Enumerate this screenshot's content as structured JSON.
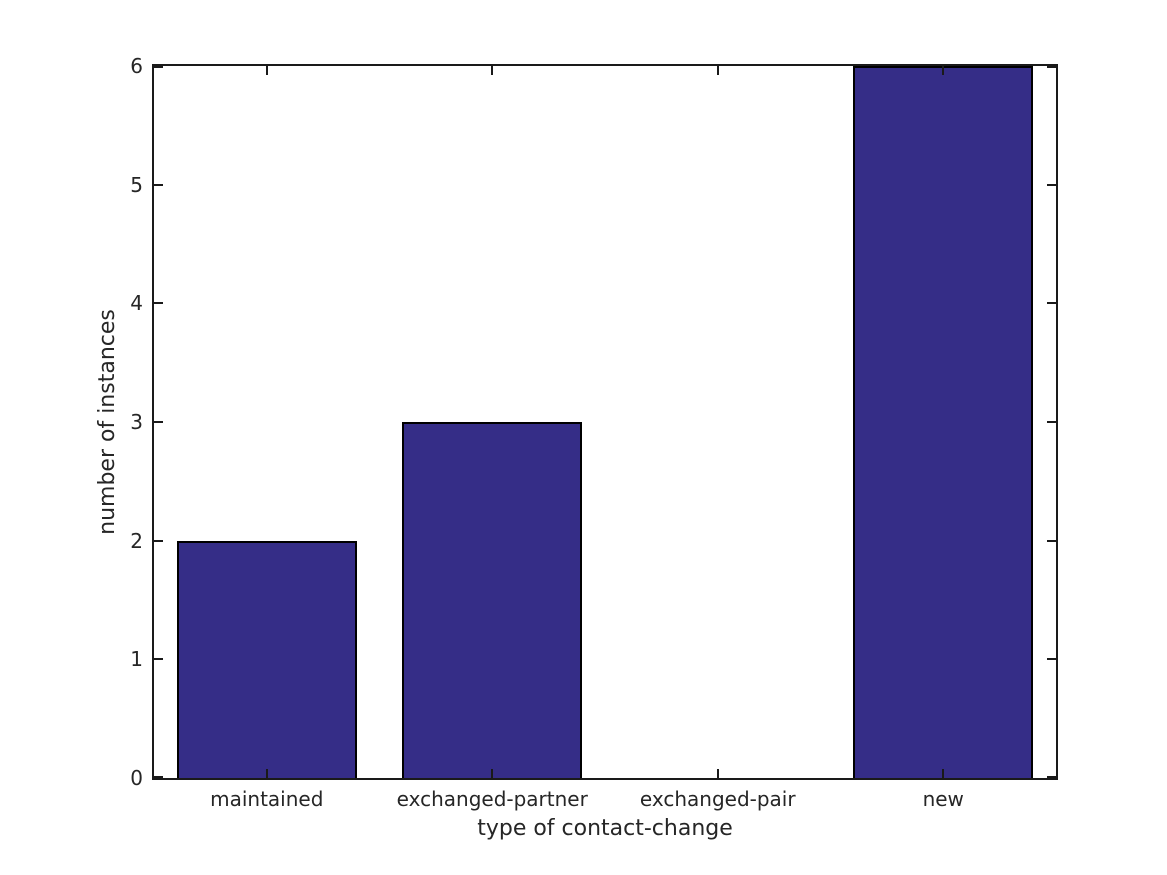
{
  "figure": {
    "background": "#FFFFFF"
  },
  "chart_data": {
    "type": "bar",
    "title": "",
    "categories": [
      "maintained",
      "exchanged-partner",
      "exchanged-pair",
      "new"
    ],
    "values": [
      2,
      3,
      0,
      6
    ],
    "xlabel": "type of contact-change",
    "ylabel": "number of instances",
    "ylim": [
      0,
      6
    ],
    "yticks": [
      0,
      1,
      2,
      3,
      4,
      5,
      6
    ],
    "ytick_labels": [
      "0",
      "1",
      "2",
      "3",
      "4",
      "5",
      "6"
    ],
    "bar_width_fraction": 0.8,
    "grid": false,
    "legend": "none",
    "box": true,
    "colors": {
      "bar_fill": "#352D87",
      "bar_edge": "#000000",
      "axis": "#1A1A1A",
      "text": "#262626",
      "background": "#FFFFFF"
    }
  }
}
